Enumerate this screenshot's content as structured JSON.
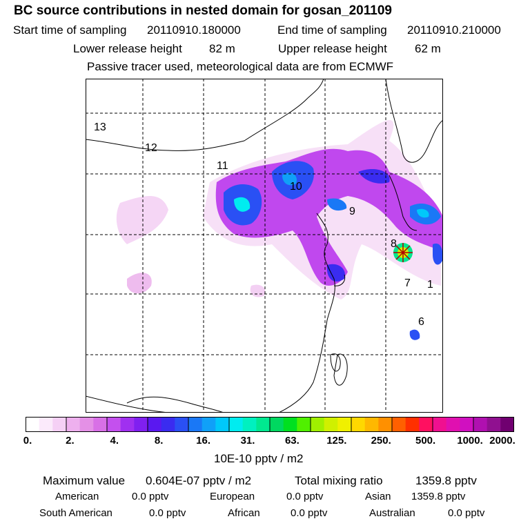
{
  "title": "BC  source contributions in nested domain for gosan_201109",
  "sampling": {
    "start_label": "Start time of sampling",
    "start_value": "20110910.180000",
    "end_label": "End time of sampling",
    "end_value": "20110910.210000"
  },
  "release": {
    "lower_label": "Lower release height",
    "lower_value": "82 m",
    "upper_label": "Upper release height",
    "upper_value": "62 m"
  },
  "note": "Passive tracer used, meteorological data are from ECMWF",
  "map": {
    "region_labels": [
      "13",
      "12",
      "11",
      "10",
      "9",
      "8",
      "7",
      "1",
      "6"
    ],
    "receptor_icon": "star-marker-icon"
  },
  "colorbar": {
    "colors": [
      "#ffffff",
      "#fbeafb",
      "#f5d0f5",
      "#eeb0ee",
      "#e490e6",
      "#d870e6",
      "#c450ee",
      "#a030f0",
      "#8020f0",
      "#5a18f0",
      "#3a2cf0",
      "#2a50f4",
      "#1a78f6",
      "#10a0f8",
      "#00c8fa",
      "#00ecf0",
      "#00f0c0",
      "#00e890",
      "#00d860",
      "#00e020",
      "#50f000",
      "#a0f000",
      "#d0f000",
      "#f0f000",
      "#ffd800",
      "#ffb800",
      "#ff9000",
      "#ff6000",
      "#ff3000",
      "#ff1060",
      "#f01090",
      "#e010b0",
      "#d010c0",
      "#b010b0",
      "#901090",
      "#700070"
    ],
    "tick_labels": [
      "0.",
      "2.",
      "4.",
      "8.",
      "16.",
      "31.",
      "63.",
      "125.",
      "250.",
      "500.",
      "1000.",
      "2000."
    ],
    "unit": "10E-10 pptv / m2"
  },
  "summary": {
    "max_label": "Maximum value",
    "max_value": "0.604E-07 pptv / m2",
    "total_label": "Total mixing ratio",
    "total_value": "1359.8 pptv",
    "sources": [
      {
        "name": "American",
        "value": "0.0 pptv"
      },
      {
        "name": "European",
        "value": "0.0 pptv"
      },
      {
        "name": "Asian",
        "value": "1359.8 pptv"
      },
      {
        "name": "South American",
        "value": "0.0 pptv"
      },
      {
        "name": "African",
        "value": "0.0 pptv"
      },
      {
        "name": "Australian",
        "value": "0.0 pptv"
      }
    ]
  }
}
